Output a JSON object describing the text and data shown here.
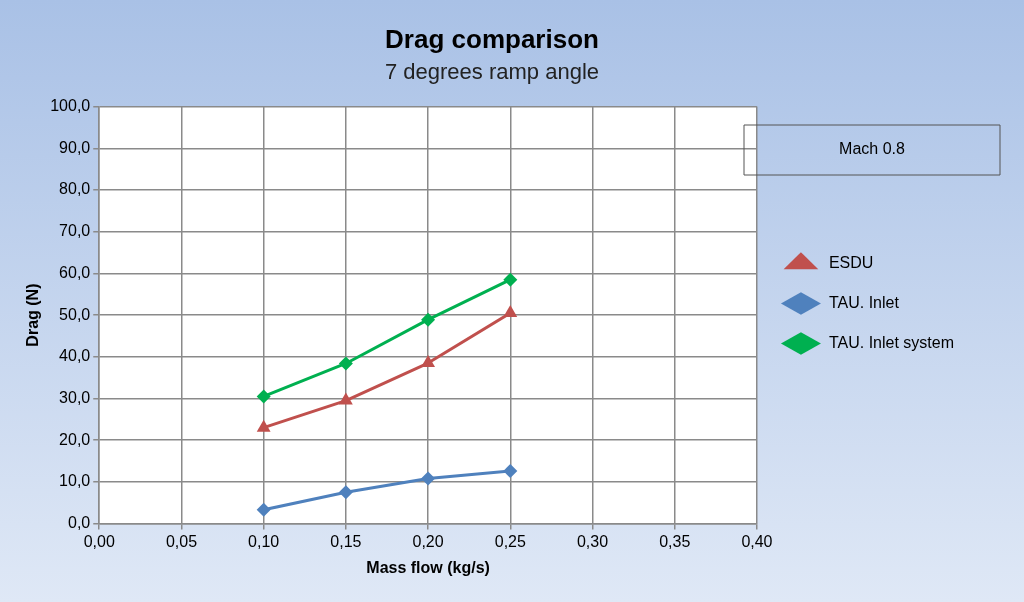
{
  "chart_data": {
    "type": "line",
    "title": "Drag comparison",
    "subtitle": "7 degrees ramp angle",
    "xlabel": "Mass flow (kg/s)",
    "ylabel": "Drag (N)",
    "annotations": [
      "Mach 0.8"
    ],
    "x": [
      0.1,
      0.15,
      0.2,
      0.25
    ],
    "series": [
      {
        "name": "ESDU",
        "color": "#c0504d",
        "marker": "triangle",
        "values": [
          23.0,
          29.5,
          38.5,
          50.5
        ]
      },
      {
        "name": "TAU. Inlet",
        "color": "#4f81bd",
        "marker": "diamond",
        "values": [
          3.3,
          7.5,
          10.8,
          12.6
        ]
      },
      {
        "name": "TAU. Inlet system",
        "color": "#00b050",
        "marker": "diamond",
        "values": [
          30.5,
          38.4,
          48.9,
          58.5
        ]
      }
    ],
    "xlim": [
      0,
      0.4
    ],
    "xticks": [
      {
        "value": 0,
        "label": "0,00"
      },
      {
        "value": 0.05,
        "label": "0,05"
      },
      {
        "value": 0.1,
        "label": "0,10"
      },
      {
        "value": 0.15,
        "label": "0,15"
      },
      {
        "value": 0.2,
        "label": "0,20"
      },
      {
        "value": 0.25,
        "label": "0,25"
      },
      {
        "value": 0.3,
        "label": "0,30"
      },
      {
        "value": 0.35,
        "label": "0,35"
      },
      {
        "value": 0.4,
        "label": "0,40"
      }
    ],
    "ylim": [
      0,
      100
    ],
    "yticks": [
      {
        "value": 0,
        "label": "0,0"
      },
      {
        "value": 10,
        "label": "10,0"
      },
      {
        "value": 20,
        "label": "20,0"
      },
      {
        "value": 30,
        "label": "30,0"
      },
      {
        "value": 40,
        "label": "40,0"
      },
      {
        "value": 50,
        "label": "50,0"
      },
      {
        "value": 60,
        "label": "60,0"
      },
      {
        "value": 70,
        "label": "70,0"
      },
      {
        "value": 80,
        "label": "80,0"
      },
      {
        "value": 90,
        "label": "90,0"
      },
      {
        "value": 100,
        "label": "100,0"
      }
    ],
    "grid": true,
    "legend": "right",
    "line_style": "solid"
  }
}
